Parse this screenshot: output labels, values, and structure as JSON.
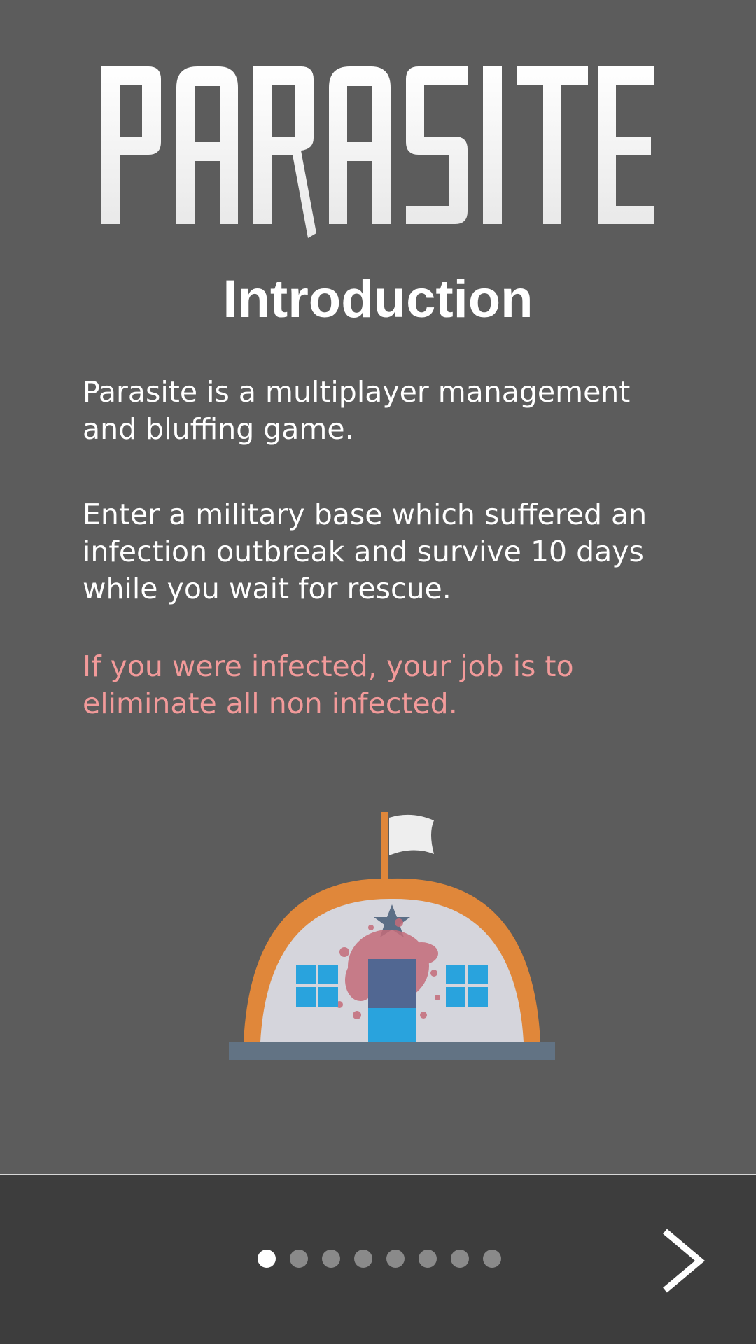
{
  "app": {
    "logo_text": "PARASITE"
  },
  "screen": {
    "title": "Introduction",
    "paragraphs": [
      "Parasite is a multiplayer management and bluffing game.",
      "Enter a military base which suffered an infection outbreak and survive 10 days while you wait for rescue.",
      "If you were infected, your job is to eliminate all non infected."
    ],
    "illustration": "military-base-illustration"
  },
  "pager": {
    "total_pages": 8,
    "current_page": 1
  },
  "navigation": {
    "next_icon": "chevron-right-icon"
  },
  "colors": {
    "background": "#5c5c5c",
    "footer": "#3d3d3d",
    "warning_text": "#f29a9a",
    "dot_active": "#ffffff",
    "dot_inactive": "#8a8a8a",
    "base_orange": "#e0873a",
    "window_blue": "#29a3dd"
  }
}
